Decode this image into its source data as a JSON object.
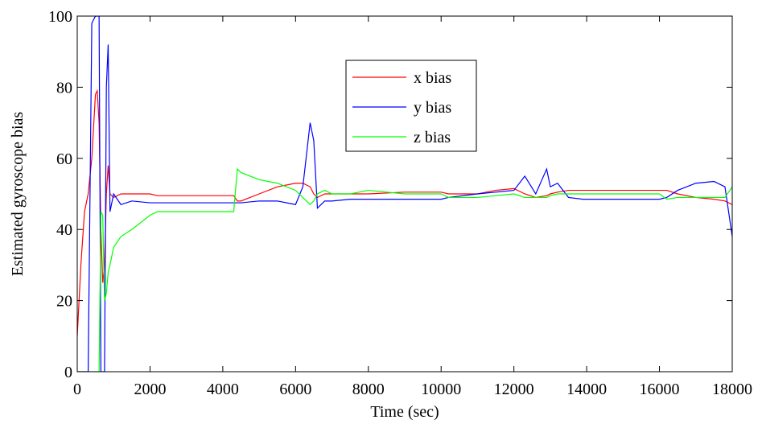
{
  "chart_data": {
    "type": "line",
    "xlabel": "Time (sec)",
    "ylabel": "Estimated gyroscope bias",
    "x": [
      0,
      50,
      100,
      200,
      300,
      400,
      500,
      550,
      600,
      650,
      700,
      750,
      800,
      850,
      900,
      1000,
      1200,
      1500,
      2000,
      2200,
      2500,
      3000,
      4000,
      4300,
      4400,
      4500,
      5000,
      5500,
      6000,
      6200,
      6400,
      6500,
      6600,
      6800,
      7000,
      7500,
      8000,
      9000,
      10000,
      10200,
      11000,
      11500,
      12000,
      12300,
      12600,
      12900,
      13000,
      13200,
      13500,
      13900,
      14000,
      15000,
      16000,
      16200,
      16500,
      17000,
      17500,
      17800,
      18000
    ],
    "series": [
      {
        "name": "x bias",
        "color": "#ff0000",
        "values": [
          10,
          20,
          30,
          45,
          50,
          60,
          78,
          79,
          70,
          40,
          25,
          30,
          50,
          58,
          50,
          49,
          50,
          50,
          50,
          49.5,
          49.5,
          49.5,
          49.5,
          49.5,
          48,
          48,
          50,
          52,
          53,
          53,
          52,
          50,
          49,
          50,
          50,
          50,
          50,
          50.5,
          50.5,
          50,
          50,
          51,
          51.5,
          50,
          49,
          49.5,
          50,
          50.5,
          51,
          51,
          51,
          51,
          51,
          51,
          50,
          49,
          48.5,
          48,
          47
        ]
      },
      {
        "name": "y bias",
        "color": "#0000ff",
        "values": [
          0,
          0,
          0,
          0,
          0,
          98,
          100,
          100,
          100,
          0,
          0,
          0,
          80,
          92,
          45,
          50,
          47,
          48,
          47.5,
          47.5,
          47.5,
          47.5,
          47.5,
          47.5,
          47.5,
          47.5,
          48,
          48,
          47,
          52,
          70,
          65,
          46,
          48,
          48,
          48.5,
          48.5,
          48.5,
          48.5,
          49,
          50,
          50.5,
          51,
          55,
          50,
          57,
          52,
          53,
          49,
          48.5,
          48.5,
          48.5,
          48.5,
          49,
          51,
          53,
          53.5,
          52,
          38
        ]
      },
      {
        "name": "z bias",
        "color": "#00ff00",
        "values": [
          0,
          0,
          0,
          0,
          0,
          0,
          0,
          0,
          0,
          45,
          44,
          20,
          22,
          28,
          30,
          35,
          38,
          40,
          44,
          45,
          45,
          45,
          45,
          45,
          57,
          56,
          54,
          53,
          51,
          49,
          47,
          48,
          50,
          51,
          50,
          50,
          51,
          50,
          50,
          49,
          49,
          49.5,
          50,
          49,
          49,
          49,
          49.5,
          50,
          50,
          50,
          50,
          50,
          50,
          48.5,
          49,
          49,
          49,
          49,
          52
        ]
      }
    ],
    "xlim": [
      0,
      18000
    ],
    "xticks": [
      0,
      2000,
      4000,
      6000,
      8000,
      10000,
      12000,
      14000,
      16000,
      18000
    ],
    "ylim": [
      0,
      100
    ],
    "yticks": [
      0,
      20,
      40,
      60,
      80,
      100
    ]
  }
}
